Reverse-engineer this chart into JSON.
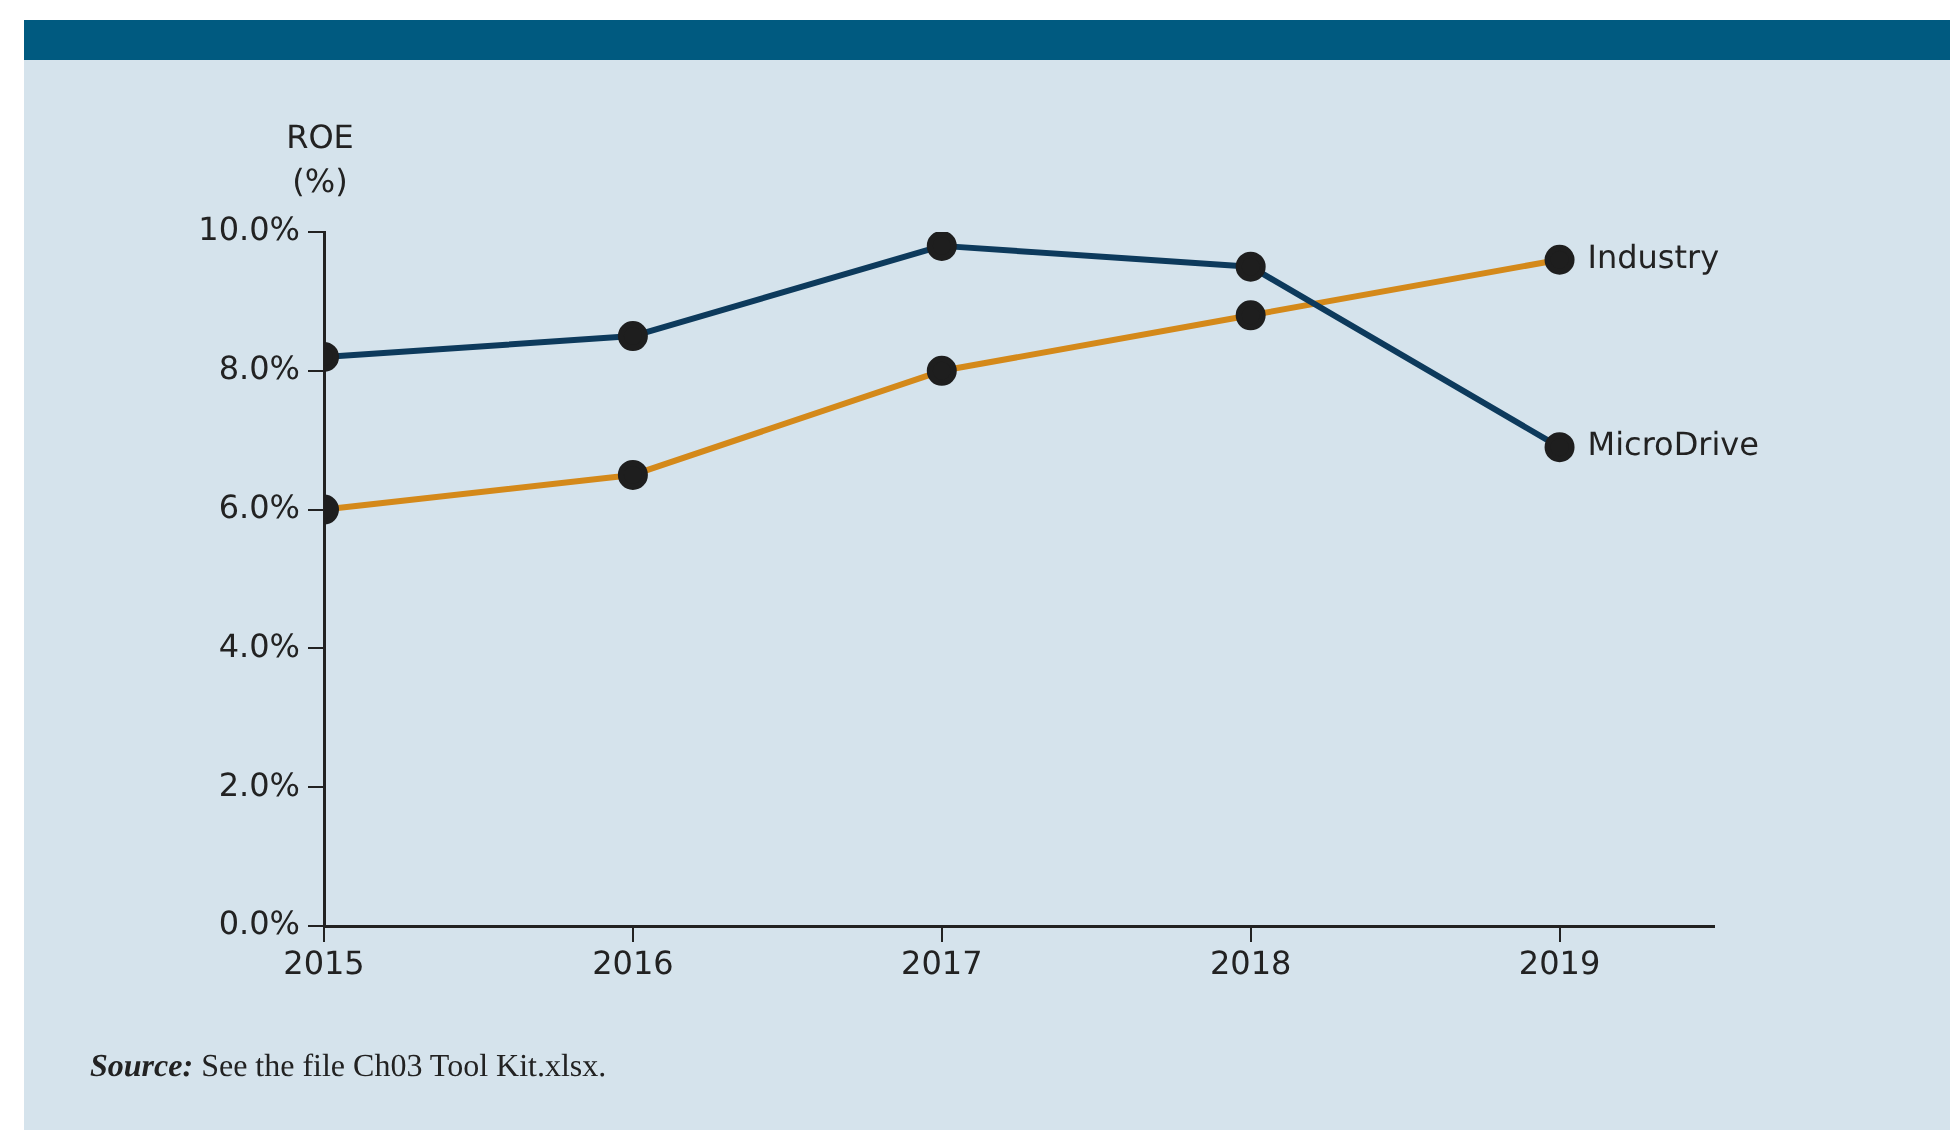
{
  "chart_data": {
    "type": "line",
    "ylabel": "ROE (%)",
    "x": [
      2015,
      2016,
      2017,
      2018,
      2019
    ],
    "xlim": [
      2015,
      2019.5
    ],
    "xticks": [
      2015,
      2016,
      2017,
      2018,
      2019
    ],
    "ylim": [
      0,
      10
    ],
    "yticks": [
      {
        "value": 0,
        "label": "0.0%"
      },
      {
        "value": 2,
        "label": "2.0%"
      },
      {
        "value": 4,
        "label": "4.0%"
      },
      {
        "value": 6,
        "label": "6.0%"
      },
      {
        "value": 8,
        "label": "8.0%"
      },
      {
        "value": 10,
        "label": "10.0%"
      }
    ],
    "grid": false,
    "legend": false,
    "marker": "circle",
    "line_style": "solid",
    "series": [
      {
        "name": "MicroDrive",
        "color": "#0d3a5c",
        "values": [
          8.2,
          8.5,
          9.8,
          9.5,
          6.9
        ]
      },
      {
        "name": "Industry",
        "color": "#d4891a",
        "values": [
          6.0,
          6.5,
          8.0,
          8.8,
          9.6
        ]
      }
    ],
    "annotations": [
      "Source: See the file Ch03 Tool Kit.xlsx."
    ]
  }
}
